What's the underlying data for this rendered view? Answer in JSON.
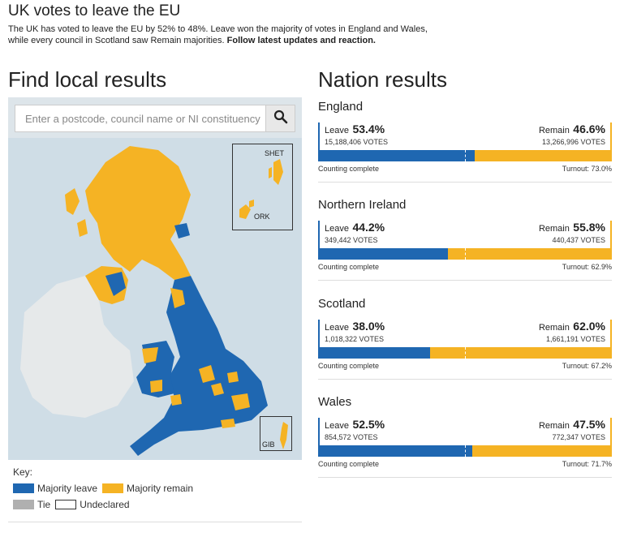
{
  "header": {
    "headline": "UK votes to leave the EU",
    "intro_line1": "The UK has voted to leave the EU by 52% to 48%. Leave won the majority of votes in England and Wales,",
    "intro_line2": "while every council in Scotland saw Remain majorities.",
    "intro_link": "Follow latest updates and reaction."
  },
  "local": {
    "title": "Find local results",
    "search_placeholder": "Enter a postcode, council name or NI constituency",
    "search_icon": "search-icon",
    "inset_labels": {
      "shetland": "SHET",
      "orkney": "ORK",
      "gibraltar": "GIB"
    }
  },
  "key": {
    "title": "Key:",
    "leave": "Majority leave",
    "remain": "Majority remain",
    "tie": "Tie",
    "undeclared": "Undeclared"
  },
  "colors": {
    "leave": "#1f67b1",
    "remain": "#f5b324",
    "tie": "#b0b0b0",
    "sea": "#cfdde6",
    "ireland": "#e6e9ea"
  },
  "nation_results": {
    "title": "Nation results",
    "leave_word": "Leave",
    "remain_word": "Remain",
    "nations": [
      {
        "name": "England",
        "leave_pct": "53.4%",
        "leave_votes": "15,188,406 VOTES",
        "remain_pct": "46.6%",
        "remain_votes": "13,266,996 VOTES",
        "leave_share": 53.4,
        "status": "Counting complete",
        "turnout": "Turnout: 73.0%"
      },
      {
        "name": "Northern Ireland",
        "leave_pct": "44.2%",
        "leave_votes": "349,442 VOTES",
        "remain_pct": "55.8%",
        "remain_votes": "440,437 VOTES",
        "leave_share": 44.2,
        "status": "Counting complete",
        "turnout": "Turnout: 62.9%"
      },
      {
        "name": "Scotland",
        "leave_pct": "38.0%",
        "leave_votes": "1,018,322 VOTES",
        "remain_pct": "62.0%",
        "remain_votes": "1,661,191 VOTES",
        "leave_share": 38.0,
        "status": "Counting complete",
        "turnout": "Turnout: 67.2%"
      },
      {
        "name": "Wales",
        "leave_pct": "52.5%",
        "leave_votes": "854,572 VOTES",
        "remain_pct": "47.5%",
        "remain_votes": "772,347 VOTES",
        "leave_share": 52.5,
        "status": "Counting complete",
        "turnout": "Turnout: 71.7%"
      }
    ]
  }
}
